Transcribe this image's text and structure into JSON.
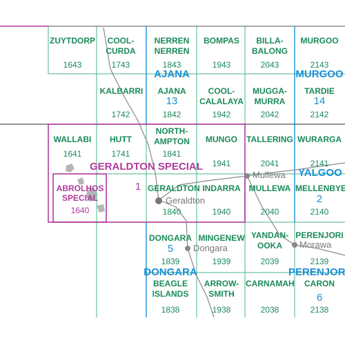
{
  "colors": {
    "grid": "#49b58a",
    "sheet_border": "#b03a9c",
    "series_border": "#1a8fd6",
    "sheet_text": "#1b8a5a",
    "series_text": "#1a8fd6",
    "special_text": "#b03a9c",
    "dark_line": "#555555",
    "road": "#888888",
    "land_grey": "#b5b5b5"
  },
  "sheets": [
    {
      "id": "zuytdorp",
      "name_lines": [
        "ZUYTDORP"
      ],
      "number": "1643"
    },
    {
      "id": "coolcurda",
      "name_lines": [
        "COOL-",
        "CURDA"
      ],
      "number": "1743"
    },
    {
      "id": "nerren",
      "name_lines": [
        "NERREN",
        "NERREN"
      ],
      "number": "1843"
    },
    {
      "id": "bompas",
      "name_lines": [
        "BOMPAS"
      ],
      "number": "1943"
    },
    {
      "id": "billabalong",
      "name_lines": [
        "BILLA-",
        "BALONG"
      ],
      "number": "2043"
    },
    {
      "id": "murgoo",
      "name_lines": [
        "MURGOO"
      ],
      "number": "2143"
    },
    {
      "id": "kalbarri",
      "name_lines": [
        "KALBARRI"
      ],
      "number": "1742"
    },
    {
      "id": "ajana",
      "name_lines": [
        "AJANA"
      ],
      "number": "1842"
    },
    {
      "id": "coolcalalaya",
      "name_lines": [
        "COOL-",
        "CALALAYA"
      ],
      "number": "1942"
    },
    {
      "id": "muggamurra",
      "name_lines": [
        "MUGGA-",
        "MURRA"
      ],
      "number": "2042"
    },
    {
      "id": "tardie",
      "name_lines": [
        "TARDIE"
      ],
      "number": "2142"
    },
    {
      "id": "wallabi",
      "name_lines": [
        "WALLABI"
      ],
      "number": "1641"
    },
    {
      "id": "hutt",
      "name_lines": [
        "HUTT"
      ],
      "number": "1741"
    },
    {
      "id": "northampton",
      "name_lines": [
        "NORTH-",
        "AMPTON"
      ],
      "number": "1841"
    },
    {
      "id": "mungo",
      "name_lines": [
        "MUNGO"
      ],
      "number": "1941"
    },
    {
      "id": "tallering",
      "name_lines": [
        "TALLERING"
      ],
      "number": "2041"
    },
    {
      "id": "wurarga",
      "name_lines": [
        "WURARGA"
      ],
      "number": "2141"
    },
    {
      "id": "abrolhos",
      "name_lines": [
        "ABROLHOS",
        "SPECIAL"
      ],
      "number": "1640"
    },
    {
      "id": "geraldton",
      "name_lines": [
        "GERALDTON"
      ],
      "number": "1840"
    },
    {
      "id": "indarra",
      "name_lines": [
        "INDARRA"
      ],
      "number": "1940"
    },
    {
      "id": "mullewa",
      "name_lines": [
        "MULLEWA"
      ],
      "number": "2040"
    },
    {
      "id": "mellenbye",
      "name_lines": [
        "MELLENBYE"
      ],
      "number": "2140"
    },
    {
      "id": "dongara",
      "name_lines": [
        "DONGARA"
      ],
      "number": "1839"
    },
    {
      "id": "mingenew",
      "name_lines": [
        "MINGENEW"
      ],
      "number": "1939"
    },
    {
      "id": "yandanooka",
      "name_lines": [
        "YANDAN-",
        "OOKA"
      ],
      "number": "2039"
    },
    {
      "id": "perenjori",
      "name_lines": [
        "PERENJORI"
      ],
      "number": "2139"
    },
    {
      "id": "beagle",
      "name_lines": [
        "BEAGLE",
        "ISLANDS"
      ],
      "number": "1838"
    },
    {
      "id": "arrowsmith",
      "name_lines": [
        "ARROW-",
        "SMITH"
      ],
      "number": "1938"
    },
    {
      "id": "carnamah",
      "name_lines": [
        "CARNAMAH"
      ],
      "number": "2038"
    },
    {
      "id": "caron",
      "name_lines": [
        "CARON"
      ],
      "number": "2138"
    }
  ],
  "series": [
    {
      "id": "ajana",
      "name": "AJANA",
      "number": "13"
    },
    {
      "id": "murgoo",
      "name": "MURGOO",
      "number": "14"
    },
    {
      "id": "yalgoo",
      "name": "YALGOO",
      "number": "2"
    },
    {
      "id": "dongara",
      "name": "DONGARA",
      "number": "5"
    },
    {
      "id": "perenjori",
      "name": "PERENJORI",
      "number": "6"
    }
  ],
  "special": {
    "name": "GERALDTON SPECIAL",
    "number": "1"
  },
  "towns": [
    {
      "id": "geraldton",
      "name": "Geraldton"
    },
    {
      "id": "mullewa",
      "name": "Mullewa"
    },
    {
      "id": "dongara",
      "name": "Dongara"
    },
    {
      "id": "morawa",
      "name": "Morawa"
    }
  ]
}
